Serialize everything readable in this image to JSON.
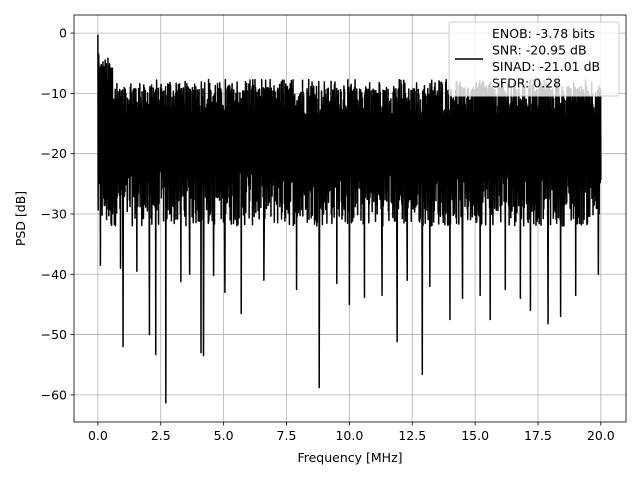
{
  "chart_data": {
    "type": "line",
    "xlabel": "Frequency [MHz]",
    "ylabel": "PSD [dB]",
    "xlim": [
      -0.95,
      21.0
    ],
    "ylim": [
      -64.5,
      3.0
    ],
    "xticks": [
      0.0,
      2.5,
      5.0,
      7.5,
      10.0,
      12.5,
      15.0,
      17.5,
      20.0
    ],
    "xtick_labels": [
      "0.0",
      "2.5",
      "5.0",
      "7.5",
      "10.0",
      "12.5",
      "15.0",
      "17.5",
      "20.0"
    ],
    "yticks": [
      0,
      -10,
      -20,
      -30,
      -40,
      -50,
      -60
    ],
    "ytick_labels": [
      "0",
      "−10",
      "−20",
      "−30",
      "−40",
      "−50",
      "−60"
    ],
    "grid": true,
    "legend_position": "top-right",
    "series": [
      {
        "name": "ENOB: -3.78 bits\nSNR: -20.95 dB\nSINAD: -21.01 dB\nSFDR: 0.28",
        "color": "#000000",
        "x_range": [
          0.0,
          20.0
        ],
        "approx_mean": -20,
        "approx_upper_envelope": -12,
        "approx_lower_envelope": -35,
        "peaks": [
          {
            "x": 0.0,
            "y": -0.28
          },
          {
            "x": 0.03,
            "y": -3.5
          },
          {
            "x": 0.15,
            "y": -6.5
          }
        ],
        "notable_minima": [
          {
            "x": 0.1,
            "y": -38.5
          },
          {
            "x": 0.9,
            "y": -39.0
          },
          {
            "x": 1.0,
            "y": -52.0
          },
          {
            "x": 1.55,
            "y": -39.5
          },
          {
            "x": 2.05,
            "y": -50.0
          },
          {
            "x": 2.3,
            "y": -53.3
          },
          {
            "x": 2.7,
            "y": -61.3
          },
          {
            "x": 3.3,
            "y": -41.2
          },
          {
            "x": 3.65,
            "y": -40.0
          },
          {
            "x": 4.1,
            "y": -53.0
          },
          {
            "x": 4.2,
            "y": -53.5
          },
          {
            "x": 4.6,
            "y": -40.2
          },
          {
            "x": 5.05,
            "y": -43.0
          },
          {
            "x": 5.7,
            "y": -46.5
          },
          {
            "x": 6.6,
            "y": -41.0
          },
          {
            "x": 7.9,
            "y": -42.5
          },
          {
            "x": 8.8,
            "y": -58.8
          },
          {
            "x": 9.5,
            "y": -41.5
          },
          {
            "x": 10.0,
            "y": -45.0
          },
          {
            "x": 10.6,
            "y": -43.8
          },
          {
            "x": 11.3,
            "y": -43.5
          },
          {
            "x": 11.9,
            "y": -51.2
          },
          {
            "x": 12.3,
            "y": -41.0
          },
          {
            "x": 12.9,
            "y": -56.6
          },
          {
            "x": 13.2,
            "y": -42.0
          },
          {
            "x": 14.0,
            "y": -47.5
          },
          {
            "x": 14.5,
            "y": -44.0
          },
          {
            "x": 15.2,
            "y": -43.5
          },
          {
            "x": 15.6,
            "y": -47.5
          },
          {
            "x": 16.2,
            "y": -42.5
          },
          {
            "x": 16.8,
            "y": -44.0
          },
          {
            "x": 17.2,
            "y": -46.0
          },
          {
            "x": 17.9,
            "y": -48.2
          },
          {
            "x": 18.4,
            "y": -47.0
          },
          {
            "x": 19.0,
            "y": -43.5
          },
          {
            "x": 19.9,
            "y": -40.0
          }
        ]
      }
    ]
  }
}
